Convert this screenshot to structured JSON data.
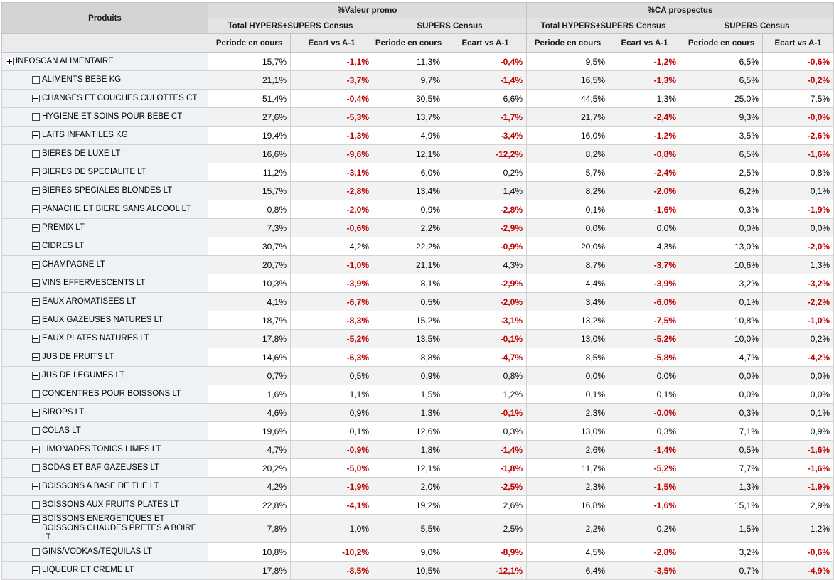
{
  "headers": {
    "produits": "Produits",
    "groups": [
      "%Valeur promo",
      "%CA prospectus"
    ],
    "subgroups": [
      "Total HYPERS+SUPERS Census",
      "SUPERS Census",
      "Total HYPERS+SUPERS Census",
      "SUPERS Census"
    ],
    "columns": [
      "Periode en cours",
      "Ecart vs A-1",
      "Periode en cours",
      "Ecart vs A-1",
      "Periode en cours",
      "Ecart vs A-1",
      "Periode en cours",
      "Ecart vs A-1"
    ]
  },
  "rows": [
    {
      "label": "INFOSCAN ALIMENTAIRE",
      "level": 0,
      "values": [
        "15,7%",
        "-1,1%",
        "11,3%",
        "-0,4%",
        "9,5%",
        "-1,2%",
        "6,5%",
        "-0,6%"
      ]
    },
    {
      "label": "ALIMENTS BEBE KG",
      "level": 1,
      "values": [
        "21,1%",
        "-3,7%",
        "9,7%",
        "-1,4%",
        "16,5%",
        "-1,3%",
        "6,5%",
        "-0,2%"
      ]
    },
    {
      "label": "CHANGES ET COUCHES CULOTTES CT",
      "level": 1,
      "values": [
        "51,4%",
        "-0,4%",
        "30,5%",
        "6,6%",
        "44,5%",
        "1,3%",
        "25,0%",
        "7,5%"
      ]
    },
    {
      "label": "HYGIENE ET SOINS POUR BEBE CT",
      "level": 1,
      "values": [
        "27,6%",
        "-5,3%",
        "13,7%",
        "-1,7%",
        "21,7%",
        "-2,4%",
        "9,3%",
        "-0,0%"
      ]
    },
    {
      "label": "LAITS INFANTILES KG",
      "level": 1,
      "values": [
        "19,4%",
        "-1,3%",
        "4,9%",
        "-3,4%",
        "16,0%",
        "-1,2%",
        "3,5%",
        "-2,6%"
      ]
    },
    {
      "label": "BIERES DE LUXE LT",
      "level": 1,
      "values": [
        "16,6%",
        "-9,6%",
        "12,1%",
        "-12,2%",
        "8,2%",
        "-0,8%",
        "6,5%",
        "-1,6%"
      ]
    },
    {
      "label": "BIERES DE SPECIALITE LT",
      "level": 1,
      "values": [
        "11,2%",
        "-3,1%",
        "6,0%",
        "0,2%",
        "5,7%",
        "-2,4%",
        "2,5%",
        "0,8%"
      ]
    },
    {
      "label": "BIERES SPECIALES BLONDES LT",
      "level": 1,
      "values": [
        "15,7%",
        "-2,8%",
        "13,4%",
        "1,4%",
        "8,2%",
        "-2,0%",
        "6,2%",
        "0,1%"
      ]
    },
    {
      "label": "PANACHE ET BIERE SANS ALCOOL LT",
      "level": 1,
      "values": [
        "0,8%",
        "-2,0%",
        "0,9%",
        "-2,8%",
        "0,1%",
        "-1,6%",
        "0,3%",
        "-1,9%"
      ]
    },
    {
      "label": "PREMIX LT",
      "level": 1,
      "values": [
        "7,3%",
        "-0,6%",
        "2,2%",
        "-2,9%",
        "0,0%",
        "0,0%",
        "0,0%",
        "0,0%"
      ]
    },
    {
      "label": "CIDRES LT",
      "level": 1,
      "values": [
        "30,7%",
        "4,2%",
        "22,2%",
        "-0,9%",
        "20,0%",
        "4,3%",
        "13,0%",
        "-2,0%"
      ]
    },
    {
      "label": "CHAMPAGNE LT",
      "level": 1,
      "values": [
        "20,7%",
        "-1,0%",
        "21,1%",
        "4,3%",
        "8,7%",
        "-3,7%",
        "10,6%",
        "1,3%"
      ]
    },
    {
      "label": "VINS EFFERVESCENTS LT",
      "level": 1,
      "values": [
        "10,3%",
        "-3,9%",
        "8,1%",
        "-2,9%",
        "4,4%",
        "-3,9%",
        "3,2%",
        "-3,2%"
      ]
    },
    {
      "label": "EAUX AROMATISEES LT",
      "level": 1,
      "values": [
        "4,1%",
        "-6,7%",
        "0,5%",
        "-2,0%",
        "3,4%",
        "-6,0%",
        "0,1%",
        "-2,2%"
      ]
    },
    {
      "label": "EAUX GAZEUSES NATURES LT",
      "level": 1,
      "values": [
        "18,7%",
        "-8,3%",
        "15,2%",
        "-3,1%",
        "13,2%",
        "-7,5%",
        "10,8%",
        "-1,0%"
      ]
    },
    {
      "label": "EAUX PLATES NATURES LT",
      "level": 1,
      "values": [
        "17,8%",
        "-5,2%",
        "13,5%",
        "-0,1%",
        "13,0%",
        "-5,2%",
        "10,0%",
        "0,2%"
      ]
    },
    {
      "label": "JUS DE FRUITS LT",
      "level": 1,
      "values": [
        "14,6%",
        "-6,3%",
        "8,8%",
        "-4,7%",
        "8,5%",
        "-5,8%",
        "4,7%",
        "-4,2%"
      ]
    },
    {
      "label": "JUS DE LEGUMES LT",
      "level": 1,
      "values": [
        "0,7%",
        "0,5%",
        "0,9%",
        "0,8%",
        "0,0%",
        "0,0%",
        "0,0%",
        "0,0%"
      ]
    },
    {
      "label": "CONCENTRES POUR BOISSONS LT",
      "level": 1,
      "values": [
        "1,6%",
        "1,1%",
        "1,5%",
        "1,2%",
        "0,1%",
        "0,1%",
        "0,0%",
        "0,0%"
      ]
    },
    {
      "label": "SIROPS LT",
      "level": 1,
      "values": [
        "4,6%",
        "0,9%",
        "1,3%",
        "-0,1%",
        "2,3%",
        "-0,0%",
        "0,3%",
        "0,1%"
      ]
    },
    {
      "label": "COLAS LT",
      "level": 1,
      "values": [
        "19,6%",
        "0,1%",
        "12,6%",
        "0,3%",
        "13,0%",
        "0,3%",
        "7,1%",
        "0,9%"
      ]
    },
    {
      "label": "LIMONADES TONICS LIMES LT",
      "level": 1,
      "values": [
        "4,7%",
        "-0,9%",
        "1,8%",
        "-1,4%",
        "2,6%",
        "-1,4%",
        "0,5%",
        "-1,6%"
      ]
    },
    {
      "label": "SODAS ET BAF GAZEUSES LT",
      "level": 1,
      "values": [
        "20,2%",
        "-5,0%",
        "12,1%",
        "-1,8%",
        "11,7%",
        "-5,2%",
        "7,7%",
        "-1,6%"
      ]
    },
    {
      "label": "BOISSONS A BASE DE THE LT",
      "level": 1,
      "values": [
        "4,2%",
        "-1,9%",
        "2,0%",
        "-2,5%",
        "2,3%",
        "-1,5%",
        "1,3%",
        "-1,9%"
      ]
    },
    {
      "label": "BOISSONS AUX FRUITS PLATES LT",
      "level": 1,
      "values": [
        "22,8%",
        "-4,1%",
        "19,2%",
        "2,6%",
        "16,8%",
        "-1,6%",
        "15,1%",
        "2,9%"
      ]
    },
    {
      "label": "BOISSONS ENERGETIQUES ET BOISSONS CHAUDES PRETES A BOIRE LT",
      "level": 1,
      "values": [
        "7,8%",
        "1,0%",
        "5,5%",
        "2,5%",
        "2,2%",
        "0,2%",
        "1,5%",
        "1,2%"
      ]
    },
    {
      "label": "GINS/VODKAS/TEQUILAS LT",
      "level": 1,
      "values": [
        "10,8%",
        "-10,2%",
        "9,0%",
        "-8,9%",
        "4,5%",
        "-2,8%",
        "3,2%",
        "-0,6%"
      ]
    },
    {
      "label": "LIQUEUR ET CREME LT",
      "level": 1,
      "values": [
        "17,8%",
        "-8,5%",
        "10,5%",
        "-12,1%",
        "6,4%",
        "-3,5%",
        "0,7%",
        "-4,9%"
      ]
    }
  ]
}
